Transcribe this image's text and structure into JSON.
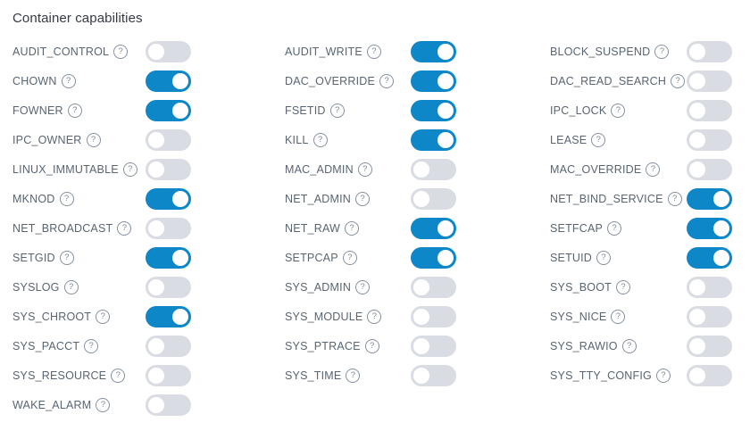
{
  "title": "Container capabilities",
  "help_icon_glyph": "?",
  "colors": {
    "toggle_on": "#0e87c8",
    "toggle_off": "#d9dce3",
    "knob": "#ffffff",
    "label_text": "#5a6572",
    "title_text": "#343b45"
  },
  "capabilities": [
    {
      "label": "AUDIT_CONTROL",
      "enabled": false
    },
    {
      "label": "AUDIT_WRITE",
      "enabled": true
    },
    {
      "label": "BLOCK_SUSPEND",
      "enabled": false
    },
    {
      "label": "CHOWN",
      "enabled": true
    },
    {
      "label": "DAC_OVERRIDE",
      "enabled": true
    },
    {
      "label": "DAC_READ_SEARCH",
      "enabled": false
    },
    {
      "label": "FOWNER",
      "enabled": true
    },
    {
      "label": "FSETID",
      "enabled": true
    },
    {
      "label": "IPC_LOCK",
      "enabled": false
    },
    {
      "label": "IPC_OWNER",
      "enabled": false
    },
    {
      "label": "KILL",
      "enabled": true
    },
    {
      "label": "LEASE",
      "enabled": false
    },
    {
      "label": "LINUX_IMMUTABLE",
      "enabled": false
    },
    {
      "label": "MAC_ADMIN",
      "enabled": false
    },
    {
      "label": "MAC_OVERRIDE",
      "enabled": false
    },
    {
      "label": "MKNOD",
      "enabled": true
    },
    {
      "label": "NET_ADMIN",
      "enabled": false
    },
    {
      "label": "NET_BIND_SERVICE",
      "enabled": true
    },
    {
      "label": "NET_BROADCAST",
      "enabled": false
    },
    {
      "label": "NET_RAW",
      "enabled": true
    },
    {
      "label": "SETFCAP",
      "enabled": true
    },
    {
      "label": "SETGID",
      "enabled": true
    },
    {
      "label": "SETPCAP",
      "enabled": true
    },
    {
      "label": "SETUID",
      "enabled": true
    },
    {
      "label": "SYSLOG",
      "enabled": false
    },
    {
      "label": "SYS_ADMIN",
      "enabled": false
    },
    {
      "label": "SYS_BOOT",
      "enabled": false
    },
    {
      "label": "SYS_CHROOT",
      "enabled": true
    },
    {
      "label": "SYS_MODULE",
      "enabled": false
    },
    {
      "label": "SYS_NICE",
      "enabled": false
    },
    {
      "label": "SYS_PACCT",
      "enabled": false
    },
    {
      "label": "SYS_PTRACE",
      "enabled": false
    },
    {
      "label": "SYS_RAWIO",
      "enabled": false
    },
    {
      "label": "SYS_RESOURCE",
      "enabled": false
    },
    {
      "label": "SYS_TIME",
      "enabled": false
    },
    {
      "label": "SYS_TTY_CONFIG",
      "enabled": false
    },
    {
      "label": "WAKE_ALARM",
      "enabled": false
    }
  ]
}
